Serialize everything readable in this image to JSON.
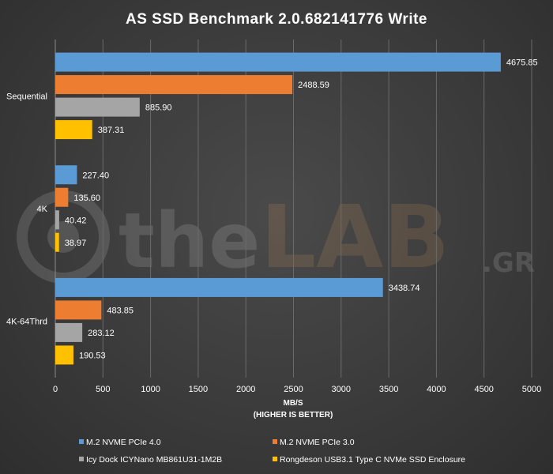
{
  "watermark": {
    "brand_prefix": "the",
    "brand_main": "LAB",
    "brand_suffix": ".GR"
  },
  "chart_data": {
    "type": "bar",
    "orientation": "horizontal",
    "title": "AS SSD Benchmark  2.0.682141776  Write",
    "xlabel": "MB/S",
    "xlabel_note": "(HIGHER IS BETTER)",
    "xlim": [
      0,
      5000
    ],
    "xticks": [
      0,
      500,
      1000,
      1500,
      2000,
      2500,
      3000,
      3500,
      4000,
      4500,
      5000
    ],
    "categories": [
      "Sequential",
      "4K",
      "4K-64Thrd"
    ],
    "series": [
      {
        "name": "M.2 NVME PCIe 4.0",
        "color": "#5b9bd5",
        "values": [
          4675.85,
          227.4,
          3438.74
        ],
        "labels": [
          "4675.85",
          "227.40",
          "3438.74"
        ]
      },
      {
        "name": "M.2 NVME PCIe 3.0",
        "color": "#ed7d31",
        "values": [
          2488.59,
          135.6,
          483.85
        ],
        "labels": [
          "2488.59",
          "135.60",
          "483.85"
        ]
      },
      {
        "name": "Icy Dock ICYNano MB861U31-1M2B",
        "color": "#a5a5a5",
        "values": [
          885.9,
          40.42,
          283.12
        ],
        "labels": [
          "885.90",
          "40.42",
          "283.12"
        ]
      },
      {
        "name": "Rongdeson USB3.1 Type C NVMe SSD Enclosure",
        "color": "#ffc000",
        "values": [
          387.31,
          38.97,
          190.53
        ],
        "labels": [
          "387.31",
          "38.97",
          "190.53"
        ]
      }
    ],
    "grid": true,
    "legend_position": "bottom"
  }
}
